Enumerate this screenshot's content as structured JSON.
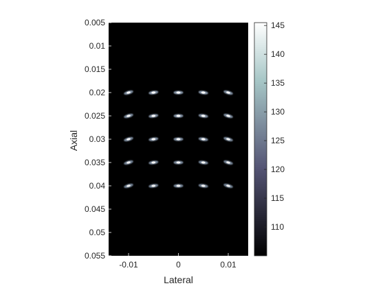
{
  "chart_data": {
    "type": "heatmap",
    "title": "",
    "xlabel": "Lateral",
    "ylabel": "Axial",
    "xlim": [
      -0.014,
      0.014
    ],
    "ylim": [
      0.005,
      0.055
    ],
    "y_reversed": true,
    "grid": false,
    "background_value": 105,
    "x_ticks": [
      -0.01,
      0,
      0.01
    ],
    "x_tick_labels": [
      "-0.01",
      "0",
      "0.01"
    ],
    "y_ticks": [
      0.005,
      0.01,
      0.015,
      0.02,
      0.025,
      0.03,
      0.035,
      0.04,
      0.045,
      0.05,
      0.055
    ],
    "y_tick_labels": [
      "0.005",
      "0.01",
      "0.015",
      "0.02",
      "0.025",
      "0.03",
      "0.035",
      "0.04",
      "0.045",
      "0.05",
      "0.055"
    ],
    "colorbar": {
      "range": [
        105,
        145.5
      ],
      "ticks": [
        110,
        115,
        120,
        125,
        130,
        135,
        140,
        145
      ],
      "tick_labels": [
        "110",
        "115",
        "120",
        "125",
        "130",
        "135",
        "140",
        "145"
      ],
      "colormap": "bone"
    },
    "scatterers": [
      {
        "x": -0.01,
        "y": 0.02,
        "value": 140
      },
      {
        "x": -0.005,
        "y": 0.02,
        "value": 145
      },
      {
        "x": 0,
        "y": 0.02,
        "value": 145
      },
      {
        "x": 0.005,
        "y": 0.02,
        "value": 145
      },
      {
        "x": 0.01,
        "y": 0.02,
        "value": 140
      },
      {
        "x": -0.01,
        "y": 0.025,
        "value": 138
      },
      {
        "x": -0.005,
        "y": 0.025,
        "value": 142
      },
      {
        "x": 0,
        "y": 0.025,
        "value": 143
      },
      {
        "x": 0.005,
        "y": 0.025,
        "value": 142
      },
      {
        "x": 0.01,
        "y": 0.025,
        "value": 138
      },
      {
        "x": -0.01,
        "y": 0.03,
        "value": 136
      },
      {
        "x": -0.005,
        "y": 0.03,
        "value": 139
      },
      {
        "x": 0,
        "y": 0.03,
        "value": 140
      },
      {
        "x": 0.005,
        "y": 0.03,
        "value": 139
      },
      {
        "x": 0.01,
        "y": 0.03,
        "value": 136
      },
      {
        "x": -0.01,
        "y": 0.035,
        "value": 134
      },
      {
        "x": -0.005,
        "y": 0.035,
        "value": 137
      },
      {
        "x": 0,
        "y": 0.035,
        "value": 138
      },
      {
        "x": 0.005,
        "y": 0.035,
        "value": 137
      },
      {
        "x": 0.01,
        "y": 0.035,
        "value": 134
      },
      {
        "x": -0.01,
        "y": 0.04,
        "value": 132
      },
      {
        "x": -0.005,
        "y": 0.04,
        "value": 135
      },
      {
        "x": 0,
        "y": 0.04,
        "value": 135
      },
      {
        "x": 0.005,
        "y": 0.04,
        "value": 135
      },
      {
        "x": 0.01,
        "y": 0.04,
        "value": 132
      }
    ]
  }
}
